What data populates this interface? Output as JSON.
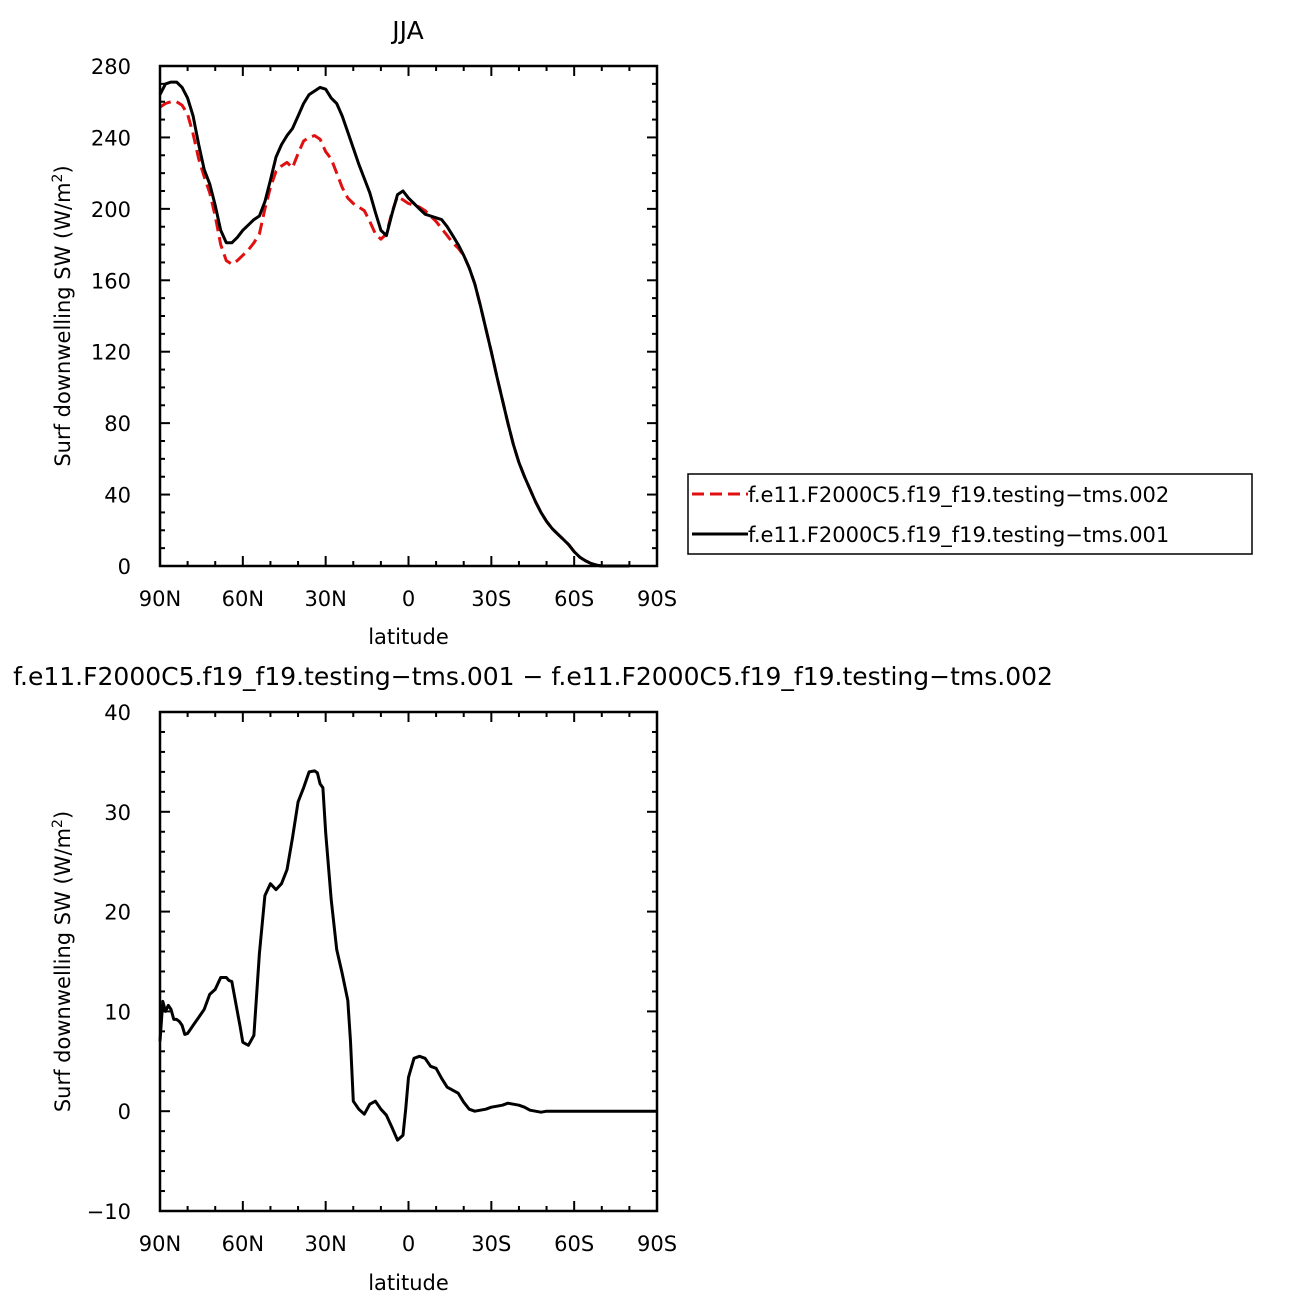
{
  "chart_data": [
    {
      "type": "line",
      "title": "JJA",
      "xlabel": "latitude",
      "ylabel": "Surf downwelling SW (W/m²)",
      "ylabel_main": "Surf downwelling SW (W/m",
      "ylabel_sup": "2",
      "ylabel_end": ")",
      "xlim": [
        90,
        -90
      ],
      "ylim": [
        0,
        280
      ],
      "xticks": [
        {
          "value": 90,
          "label": "90N"
        },
        {
          "value": 60,
          "label": "60N"
        },
        {
          "value": 30,
          "label": "30N"
        },
        {
          "value": 0,
          "label": "0"
        },
        {
          "value": -30,
          "label": "30S"
        },
        {
          "value": -60,
          "label": "60S"
        },
        {
          "value": -90,
          "label": "90S"
        }
      ],
      "yticks": [
        {
          "value": 0,
          "label": "0"
        },
        {
          "value": 40,
          "label": "40"
        },
        {
          "value": 80,
          "label": "80"
        },
        {
          "value": 120,
          "label": "120"
        },
        {
          "value": 160,
          "label": "160"
        },
        {
          "value": 200,
          "label": "200"
        },
        {
          "value": 240,
          "label": "240"
        },
        {
          "value": 280,
          "label": "280"
        }
      ],
      "legend_position": "right",
      "series": [
        {
          "name": "f.e11.F2000C5.f19_f19.testing−tms.002",
          "color": "#e01010",
          "dashed": true,
          "x": [
            90,
            88,
            86,
            84,
            82,
            80,
            78,
            76,
            74,
            72,
            70,
            68,
            66,
            64,
            62,
            60,
            58,
            56,
            54,
            52,
            50,
            48,
            46,
            44,
            42,
            40,
            38,
            36,
            34,
            32,
            30,
            28,
            26,
            24,
            22,
            20,
            18,
            16,
            14,
            12,
            10,
            8,
            6,
            4,
            2,
            0,
            -2,
            -4,
            -6,
            -8,
            -10,
            -12,
            -14,
            -16,
            -18,
            -20,
            -22,
            -24,
            -26,
            -28,
            -30,
            -32,
            -34,
            -36,
            -38,
            -40,
            -42,
            -44,
            -46,
            -48,
            -50,
            -52,
            -54,
            -56,
            -58,
            -60,
            -62,
            -64,
            -66,
            -68,
            -70,
            -72,
            -74,
            -76,
            -78,
            -80
          ],
          "y": [
            257,
            259,
            260,
            260,
            258,
            253,
            242,
            228,
            218,
            209,
            196,
            180,
            171,
            169,
            171,
            174,
            177,
            181,
            186,
            200,
            212,
            221,
            224,
            226,
            223,
            231,
            238,
            240,
            241,
            239,
            232,
            228,
            220,
            212,
            206,
            203,
            201,
            199,
            193,
            186,
            183,
            186,
            198,
            207,
            205,
            203,
            202,
            201,
            199,
            196,
            193,
            189,
            185,
            181,
            178,
            174,
            167,
            158,
            146,
            133,
            120,
            106,
            93,
            80,
            68,
            58,
            50,
            43,
            36,
            30,
            25,
            21,
            18,
            15,
            12,
            8,
            5,
            3,
            1.5,
            0.5,
            0,
            0,
            0,
            0,
            0,
            0
          ]
        },
        {
          "name": "f.e11.F2000C5.f19_f19.testing−tms.001",
          "color": "#000000",
          "dashed": false,
          "x": [
            90,
            88,
            86,
            84,
            82,
            80,
            78,
            76,
            74,
            72,
            70,
            68,
            66,
            64,
            62,
            60,
            58,
            56,
            54,
            52,
            50,
            48,
            46,
            44,
            42,
            40,
            38,
            36,
            34,
            32,
            30,
            28,
            26,
            24,
            22,
            20,
            18,
            16,
            14,
            12,
            10,
            8,
            6,
            4,
            2,
            0,
            -2,
            -4,
            -6,
            -8,
            -10,
            -12,
            -14,
            -16,
            -18,
            -20,
            -22,
            -24,
            -26,
            -28,
            -30,
            -32,
            -34,
            -36,
            -38,
            -40,
            -42,
            -44,
            -46,
            -48,
            -50,
            -52,
            -54,
            -56,
            -58,
            -60,
            -62,
            -64,
            -66,
            -68,
            -70,
            -72,
            -74,
            -76,
            -78,
            -80
          ],
          "y": [
            264,
            270,
            271,
            271,
            268,
            262,
            252,
            236,
            222,
            214,
            202,
            188,
            181,
            181,
            184,
            188,
            191,
            194,
            196,
            204,
            216,
            229,
            236,
            241,
            245,
            252,
            259,
            264,
            266,
            268,
            267,
            262,
            259,
            252,
            243,
            234,
            225,
            217,
            209,
            198,
            188,
            185,
            197,
            208,
            210,
            206,
            203,
            200,
            197,
            196,
            195,
            194,
            190,
            185,
            180,
            174,
            167,
            158,
            146,
            133,
            120,
            106,
            93,
            80,
            68,
            58,
            50,
            43,
            36,
            30,
            25,
            21,
            18,
            15,
            12,
            8,
            5,
            3,
            1.5,
            0.5,
            0,
            0,
            0,
            0,
            0,
            0
          ]
        }
      ]
    },
    {
      "type": "line",
      "title": "f.e11.F2000C5.f19_f19.testing−tms.001 − f.e11.F2000C5.f19_f19.testing−tms.002",
      "xlabel": "latitude",
      "ylabel": "Surf downwelling SW (W/m²)",
      "ylabel_main": "Surf downwelling SW (W/m",
      "ylabel_sup": "2",
      "ylabel_end": ")",
      "xlim": [
        90,
        -90
      ],
      "ylim": [
        -10,
        40
      ],
      "xticks": [
        {
          "value": 90,
          "label": "90N"
        },
        {
          "value": 60,
          "label": "60N"
        },
        {
          "value": 30,
          "label": "30N"
        },
        {
          "value": 0,
          "label": "0"
        },
        {
          "value": -30,
          "label": "30S"
        },
        {
          "value": -60,
          "label": "60S"
        },
        {
          "value": -90,
          "label": "90S"
        }
      ],
      "yticks": [
        {
          "value": -10,
          "label": "−10"
        },
        {
          "value": 0,
          "label": "0"
        },
        {
          "value": 10,
          "label": "10"
        },
        {
          "value": 20,
          "label": "20"
        },
        {
          "value": 30,
          "label": "30"
        },
        {
          "value": 40,
          "label": "40"
        }
      ],
      "series": [
        {
          "color": "#000000",
          "dashed": false,
          "x": [
            90,
            89,
            88,
            87,
            86,
            85,
            84,
            83,
            82,
            81,
            80,
            79,
            78,
            77,
            76,
            74,
            72,
            70,
            68,
            66,
            65,
            64,
            62,
            61,
            60,
            58,
            56,
            54,
            52,
            50,
            48,
            46,
            44,
            42,
            40,
            38,
            36,
            34,
            33,
            32,
            31,
            30,
            28,
            26,
            24,
            22,
            21,
            20,
            18,
            16,
            14,
            12,
            10,
            8,
            6,
            4,
            2,
            1,
            0,
            -2,
            -4,
            -6,
            -8,
            -10,
            -12,
            -14,
            -16,
            -18,
            -20,
            -22,
            -24,
            -26,
            -28,
            -30,
            -32,
            -34,
            -36,
            -38,
            -40,
            -42,
            -44,
            -46,
            -48,
            -50,
            -52,
            -54,
            -56,
            -58,
            -60,
            -62,
            -64,
            -66,
            -68,
            -70,
            -75,
            -80,
            -85,
            -90
          ],
          "y": [
            7,
            11,
            10,
            10.6,
            10.2,
            9.2,
            9.2,
            9.0,
            8.6,
            7.7,
            7.8,
            8.2,
            8.6,
            9.0,
            9.4,
            10.2,
            11.7,
            12.2,
            13.4,
            13.4,
            13.1,
            13.0,
            10,
            8.5,
            6.9,
            6.6,
            7.6,
            15.8,
            21.6,
            22.8,
            22.2,
            22.8,
            24.2,
            27.4,
            31,
            32.4,
            34,
            34.1,
            33.9,
            32.8,
            32.4,
            27.9,
            21.2,
            16.2,
            13.8,
            11.1,
            7,
            1,
            0.2,
            -0.3,
            0.7,
            1.0,
            0.2,
            -0.4,
            -1.6,
            -2.9,
            -2.4,
            0.2,
            3.4,
            5.3,
            5.5,
            5.3,
            4.5,
            4.3,
            3.3,
            2.4,
            2.1,
            1.8,
            0.9,
            0.2,
            0,
            0.1,
            0.2,
            0.4,
            0.5,
            0.6,
            0.8,
            0.7,
            0.6,
            0.4,
            0.1,
            0,
            -0.1,
            0,
            0,
            0,
            0,
            0,
            0,
            0,
            0,
            0,
            0,
            0,
            0,
            0,
            0,
            0
          ]
        }
      ]
    }
  ]
}
